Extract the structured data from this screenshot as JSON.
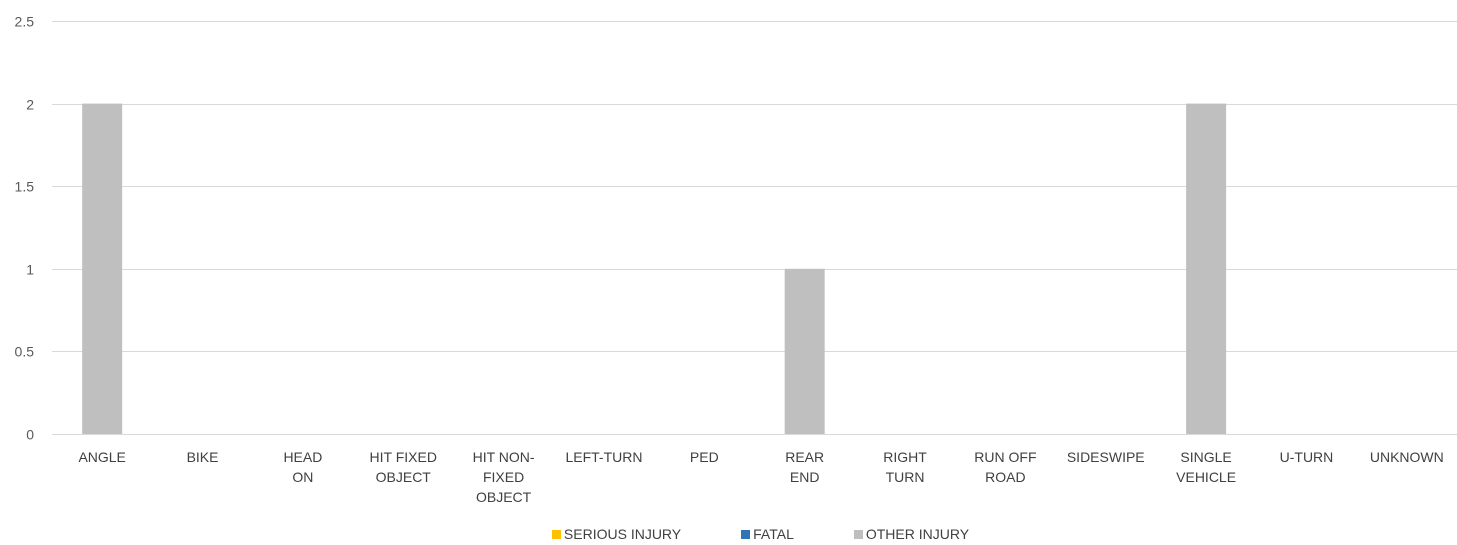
{
  "chart_data": {
    "type": "bar",
    "categories": [
      [
        "ANGLE"
      ],
      [
        "BIKE"
      ],
      [
        "HEAD",
        "ON"
      ],
      [
        "HIT FIXED",
        "OBJECT"
      ],
      [
        "HIT NON-",
        "FIXED",
        "OBJECT"
      ],
      [
        "LEFT-TURN"
      ],
      [
        "PED"
      ],
      [
        "REAR",
        "END"
      ],
      [
        "RIGHT",
        "TURN"
      ],
      [
        "RUN OFF",
        "ROAD"
      ],
      [
        "SIDESWIPE"
      ],
      [
        "SINGLE",
        "VEHICLE"
      ],
      [
        "U-TURN"
      ],
      [
        "UNKNOWN"
      ]
    ],
    "series": [
      {
        "name": "SERIOUS INJURY",
        "color": "#FFC000",
        "values": [
          0,
          0,
          0,
          0,
          0,
          0,
          0,
          0,
          0,
          0,
          0,
          0,
          0,
          0
        ]
      },
      {
        "name": "FATAL",
        "color": "#2E75B6",
        "values": [
          0,
          0,
          0,
          0,
          0,
          0,
          0,
          0,
          0,
          0,
          0,
          0,
          0,
          0
        ]
      },
      {
        "name": "OTHER INJURY",
        "color": "#BFBFBF",
        "values": [
          2,
          0,
          0,
          0,
          0,
          0,
          0,
          1,
          0,
          0,
          0,
          2,
          0,
          0
        ]
      }
    ],
    "yticks": [
      "0",
      "0.5",
      "1",
      "1.5",
      "2",
      "2.5"
    ],
    "ylim": [
      0,
      2.5
    ],
    "grid": true,
    "legend_position": "bottom"
  }
}
